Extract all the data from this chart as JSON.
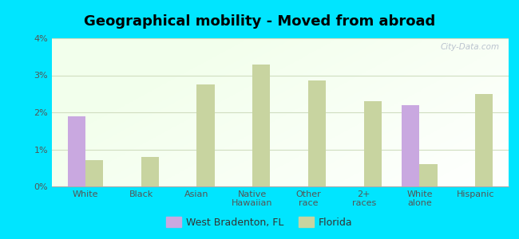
{
  "title": "Geographical mobility - Moved from abroad",
  "categories": [
    "White",
    "Black",
    "Asian",
    "Native\nHawaiian",
    "Other\nrace",
    "2+\nraces",
    "White\nalone",
    "Hispanic"
  ],
  "west_bradenton": [
    1.9,
    0.0,
    0.0,
    0.0,
    0.0,
    0.0,
    2.2,
    0.0
  ],
  "florida": [
    0.7,
    0.8,
    2.75,
    3.3,
    2.85,
    2.3,
    0.6,
    2.5
  ],
  "west_bradenton_color": "#c9a8e0",
  "florida_color": "#c8d4a0",
  "background_outer": "#00e5ff",
  "ylim": [
    0,
    4
  ],
  "yticks": [
    0,
    1,
    2,
    3,
    4
  ],
  "ytick_labels": [
    "0%",
    "1%",
    "2%",
    "3%",
    "4%"
  ],
  "bar_width": 0.32,
  "legend_label_wb": "West Bradenton, FL",
  "legend_label_fl": "Florida",
  "title_fontsize": 13,
  "tick_fontsize": 8,
  "legend_fontsize": 9,
  "grid_color": "#d0ddc0",
  "watermark": "City-Data.com"
}
